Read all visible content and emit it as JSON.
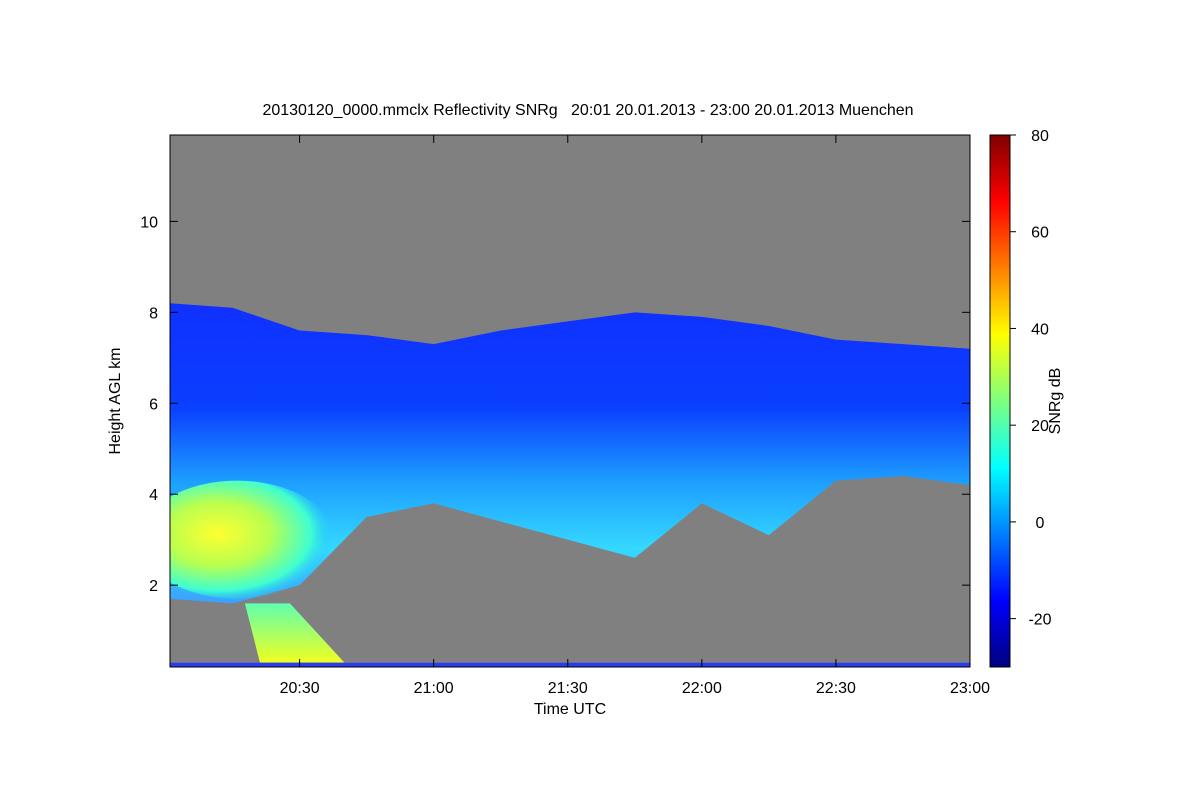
{
  "chart_data": {
    "type": "heatmap",
    "title": "20130120_0000.mmclx Reflectivity SNRg   20:01 20.01.2013 - 23:00 20.01.2013 Muenchen",
    "xlabel": "Time UTC",
    "ylabel": "Height AGL km",
    "x_range": [
      "20:01",
      "23:00"
    ],
    "x_ticks": [
      "20:30",
      "21:00",
      "21:30",
      "22:00",
      "22:30",
      "23:00"
    ],
    "ylim": [
      0.2,
      11.9
    ],
    "y_ticks": [
      2,
      4,
      6,
      8,
      10
    ],
    "colorbar": {
      "label": "SNRg dB",
      "range": [
        -30,
        80
      ],
      "ticks": [
        -20,
        0,
        20,
        40,
        60,
        80
      ],
      "colormap": [
        "#00007f",
        "#0000ff",
        "#007fff",
        "#00ffff",
        "#7fff7f",
        "#ffff00",
        "#ff7f00",
        "#ff0000",
        "#7f0000"
      ]
    },
    "background_color": "#808080",
    "echo_region": {
      "description_times": [
        "20:01",
        "20:15",
        "20:30",
        "20:45",
        "21:00",
        "21:15",
        "21:30",
        "21:45",
        "22:00",
        "22:15",
        "22:30",
        "22:45",
        "23:00"
      ],
      "top_km": [
        8.2,
        8.1,
        7.6,
        7.5,
        7.3,
        7.6,
        7.8,
        8.0,
        7.9,
        7.7,
        7.4,
        7.3,
        7.2
      ],
      "base_km": [
        1.7,
        1.6,
        2.0,
        3.5,
        3.8,
        3.4,
        3.0,
        2.6,
        3.8,
        3.1,
        4.3,
        4.4,
        4.2
      ]
    },
    "precip_fall": {
      "time_range": [
        "20:20",
        "20:40"
      ],
      "top_km": 1.6,
      "peak_snr_db": 40
    },
    "ground_clutter_km": 0.25
  }
}
